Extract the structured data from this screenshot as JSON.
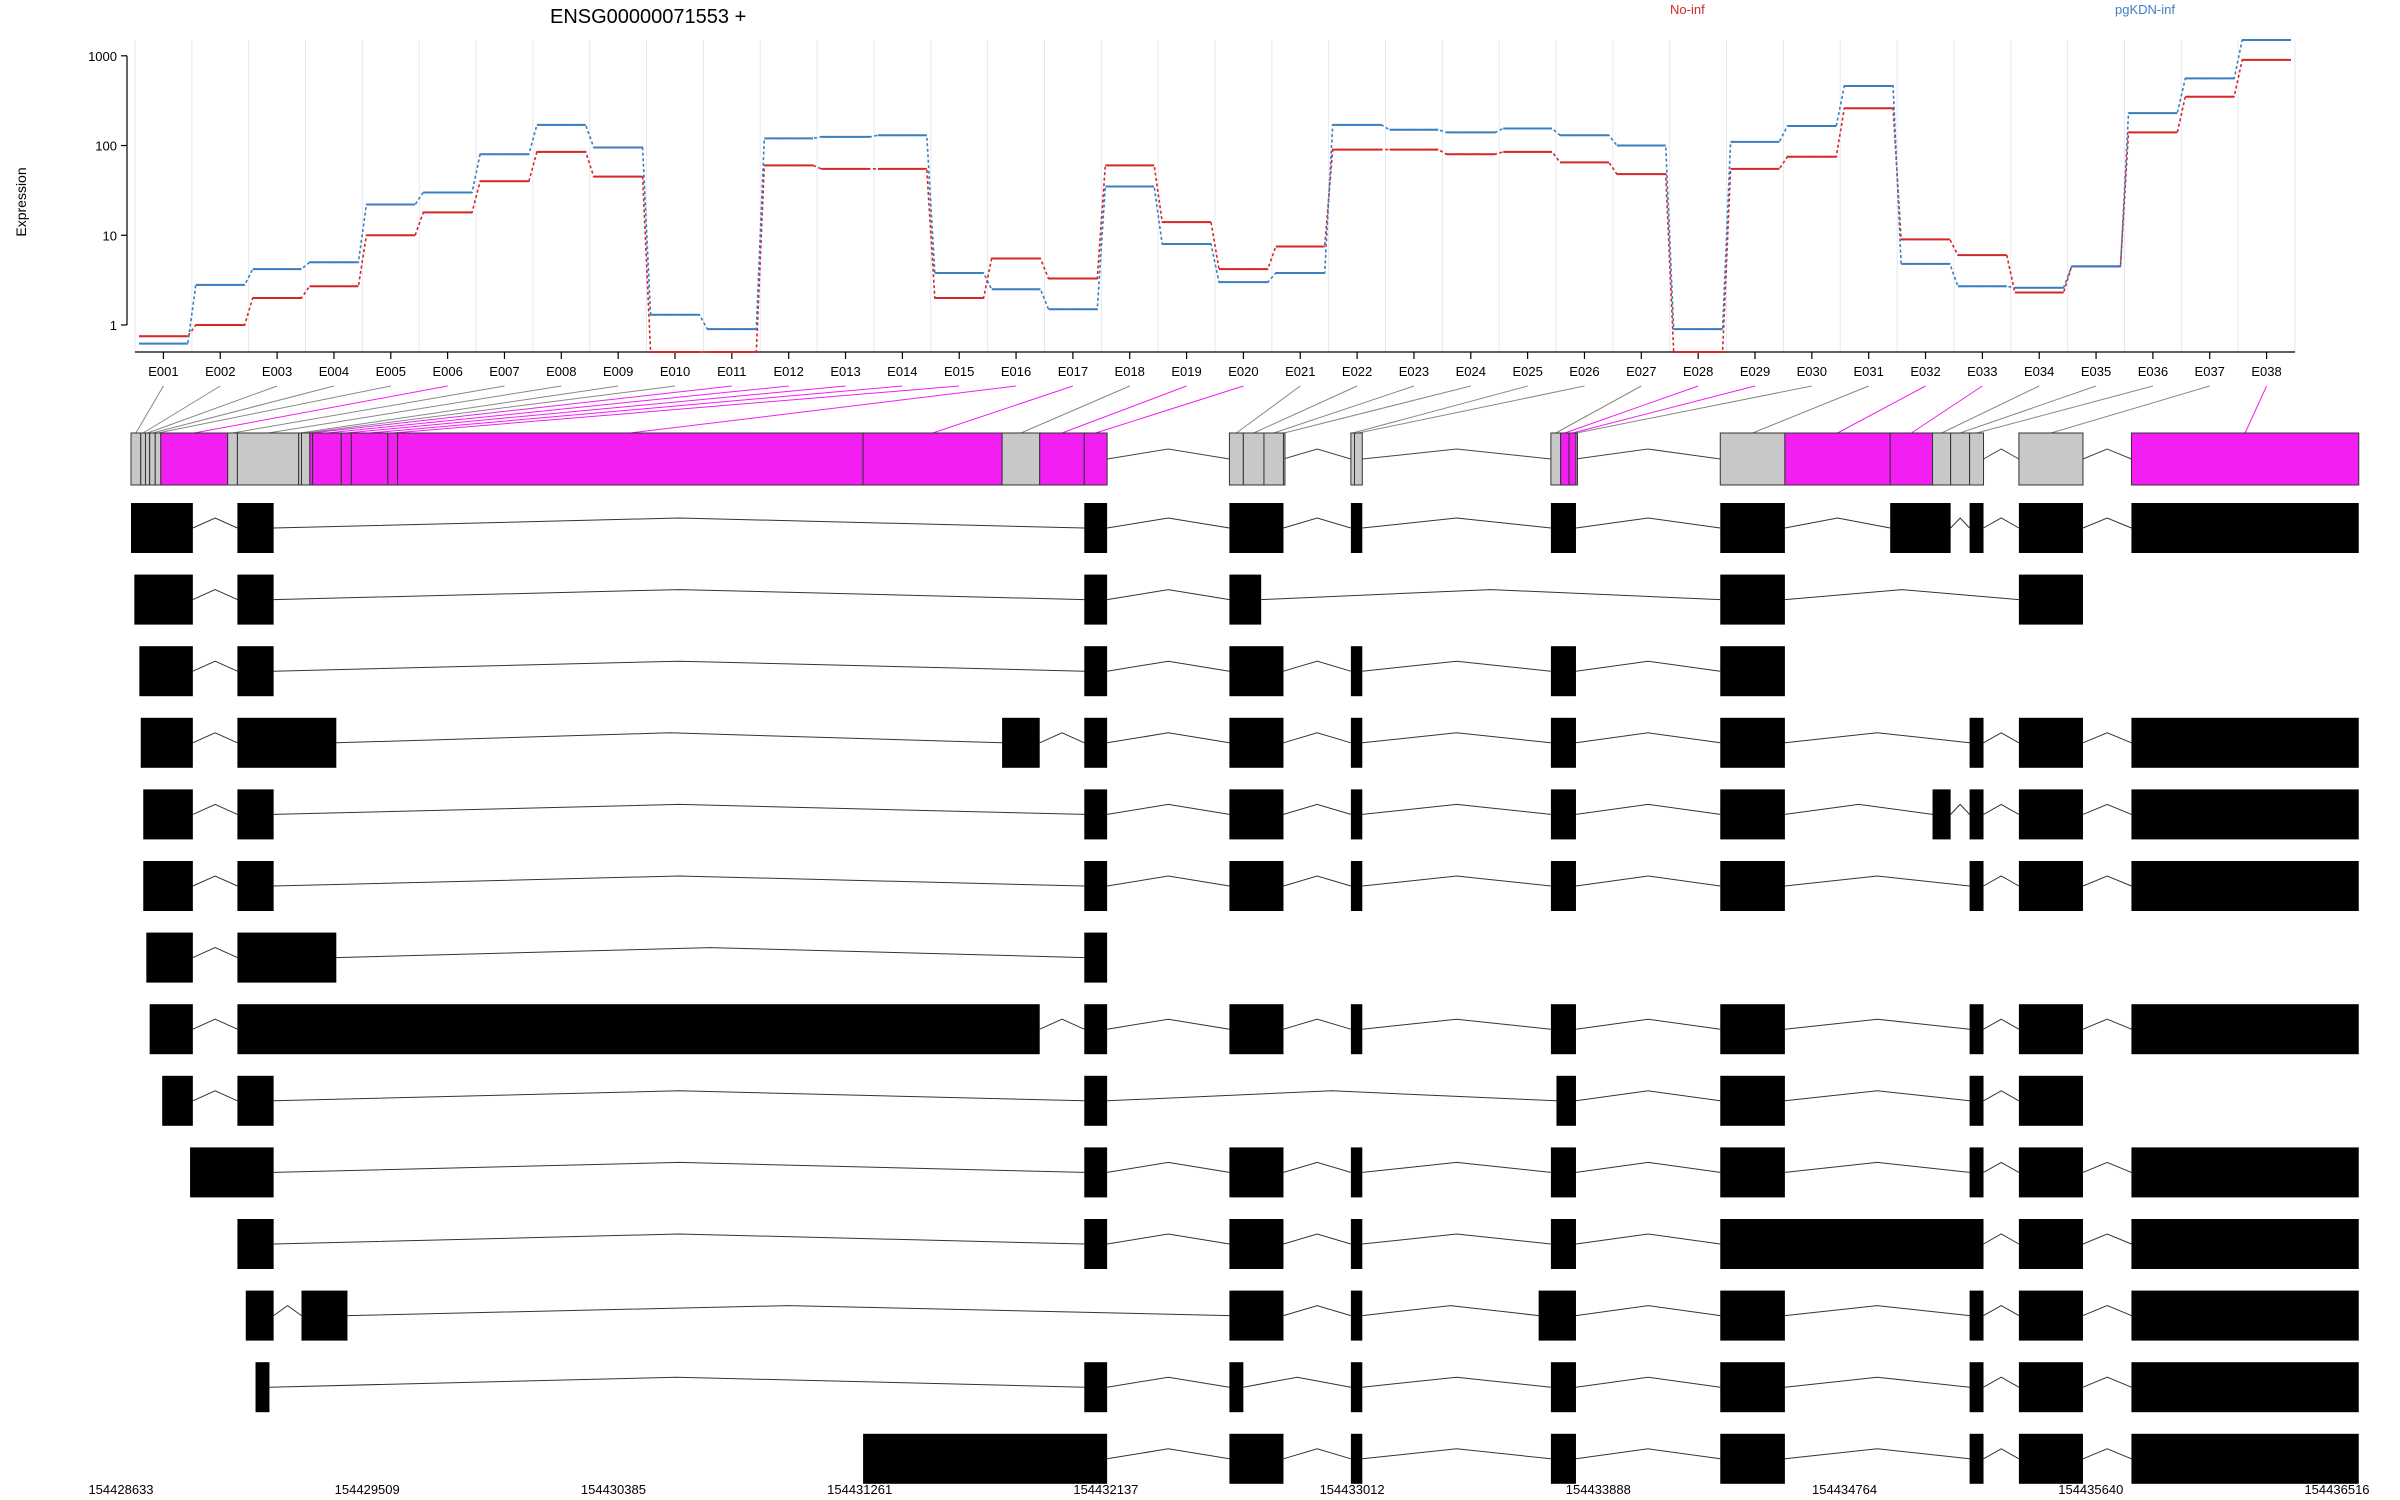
{
  "chart_data": {
    "type": "line",
    "title": "ENSG00000071553 +",
    "ylabel": "Expression",
    "yscale": "log",
    "yticks": [
      1,
      10,
      100,
      1000
    ],
    "yticklabels": [
      "1",
      "10",
      "100",
      "1000"
    ],
    "ylim": [
      0.5,
      1500
    ],
    "grid": "vertical",
    "legend": "top-right",
    "series_colors": [
      "#d62728",
      "#3a7fc0"
    ],
    "categories": [
      "E001",
      "E002",
      "E003",
      "E004",
      "E005",
      "E006",
      "E007",
      "E008",
      "E009",
      "E010",
      "E011",
      "E012",
      "E013",
      "E014",
      "E015",
      "E016",
      "E017",
      "E018",
      "E019",
      "E020",
      "E021",
      "E022",
      "E023",
      "E024",
      "E025",
      "E026",
      "E027",
      "E028",
      "E029",
      "E030",
      "E031",
      "E032",
      "E033",
      "E034",
      "E035",
      "E036",
      "E037",
      "E038"
    ],
    "series": [
      {
        "name": "No-inf",
        "color": "#d62728",
        "values": [
          0.75,
          1.0,
          2.0,
          2.7,
          10,
          18,
          40,
          85,
          45,
          0.5,
          0.5,
          60,
          55,
          55,
          2.0,
          5.5,
          3.3,
          60,
          14,
          4.2,
          7.5,
          90,
          90,
          80,
          85,
          65,
          48,
          0.5,
          55,
          75,
          260,
          9,
          6,
          2.3,
          4.5,
          140,
          350,
          900
        ]
      },
      {
        "name": "pgKDN-inf",
        "color": "#3a7fc0",
        "values": [
          0.62,
          2.8,
          4.2,
          5.0,
          22,
          30,
          80,
          170,
          95,
          1.3,
          0.9,
          120,
          125,
          130,
          3.8,
          2.5,
          1.5,
          35,
          8,
          3,
          3.8,
          170,
          150,
          140,
          155,
          130,
          100,
          0.9,
          110,
          165,
          460,
          4.8,
          2.7,
          2.6,
          4.5,
          230,
          560,
          1500
        ]
      }
    ],
    "gene_model": {
      "exon_bins": [
        [
          154428633,
          154428668
        ],
        [
          154428668,
          154428685
        ],
        [
          154428685,
          154428700
        ],
        [
          154428700,
          154428720
        ],
        [
          154428720,
          154428740
        ],
        [
          154428740,
          154428980
        ],
        [
          154428980,
          154429015
        ],
        [
          154429015,
          154429235
        ],
        [
          154429235,
          154429245
        ],
        [
          154429245,
          154429275
        ],
        [
          154429275,
          154429285
        ],
        [
          154429285,
          154429388
        ],
        [
          154429388,
          154429424
        ],
        [
          154429424,
          154429555
        ],
        [
          154429555,
          154429590
        ],
        [
          154429590,
          154431261
        ],
        [
          154431261,
          154431760
        ],
        [
          154431760,
          154431895
        ],
        [
          154431895,
          154432055
        ],
        [
          154432055,
          154432137
        ],
        [
          154432576,
          154432626
        ],
        [
          154432626,
          154432700
        ],
        [
          154432700,
          154432770
        ],
        [
          154432770,
          154432770
        ],
        [
          154433012,
          154433025
        ],
        [
          154433025,
          154433053
        ],
        [
          154433730,
          154433765
        ],
        [
          154433765,
          154433795
        ],
        [
          154433795,
          154433820
        ],
        [
          154433820,
          154433818
        ],
        [
          154434338,
          154434570
        ],
        [
          154434570,
          154434948
        ],
        [
          154434948,
          154435100
        ],
        [
          154435100,
          154435165
        ],
        [
          154435165,
          154435233
        ],
        [
          154435233,
          154435283
        ],
        [
          154435410,
          154435640
        ],
        [
          154435814,
          154436630
        ]
      ],
      "exon_bin_highlight": [
        false,
        false,
        false,
        false,
        false,
        true,
        false,
        false,
        false,
        false,
        true,
        true,
        true,
        true,
        true,
        true,
        true,
        false,
        true,
        true,
        false,
        false,
        false,
        false,
        false,
        false,
        false,
        true,
        true,
        false,
        false,
        true,
        true,
        false,
        false,
        false,
        false,
        true
      ],
      "highlight_color": "#f21ef2",
      "base_color": "#c8c8c8",
      "transcripts": [
        [
          [
            154428633,
            154428855
          ],
          [
            154429015,
            154429145
          ],
          [
            154432055,
            154432137
          ],
          [
            154432576,
            154432770
          ],
          [
            154433012,
            154433053
          ],
          [
            154433730,
            154433820
          ],
          [
            154434338,
            154434570
          ],
          [
            154434948,
            154435165
          ],
          [
            154435233,
            154435283
          ],
          [
            154435410,
            154435640
          ],
          [
            154435814,
            154436630
          ]
        ],
        [
          [
            154428645,
            154428855
          ],
          [
            154429015,
            154429145
          ],
          [
            154432055,
            154432137
          ],
          [
            154432576,
            154432690
          ],
          [
            154434338,
            154434570
          ],
          [
            154435410,
            154435640
          ]
        ],
        [
          [
            154428663,
            154428855
          ],
          [
            154429015,
            154429145
          ],
          [
            154432055,
            154432137
          ],
          [
            154432576,
            154432770
          ],
          [
            154433012,
            154433053
          ],
          [
            154433730,
            154433820
          ],
          [
            154434338,
            154434570
          ]
        ],
        [
          [
            154428668,
            154428855
          ],
          [
            154429015,
            154429370
          ],
          [
            154431760,
            154431895
          ],
          [
            154432055,
            154432137
          ],
          [
            154432576,
            154432770
          ],
          [
            154433012,
            154433053
          ],
          [
            154433730,
            154433820
          ],
          [
            154434338,
            154434570
          ],
          [
            154435233,
            154435283
          ],
          [
            154435410,
            154435640
          ],
          [
            154435814,
            154436630
          ]
        ],
        [
          [
            154428677,
            154428855
          ],
          [
            154429015,
            154429145
          ],
          [
            154432055,
            154432137
          ],
          [
            154432576,
            154432770
          ],
          [
            154433012,
            154433053
          ],
          [
            154433730,
            154433820
          ],
          [
            154434338,
            154434570
          ],
          [
            154435100,
            154435165
          ],
          [
            154435233,
            154435283
          ],
          [
            154435410,
            154435640
          ],
          [
            154435814,
            154436630
          ]
        ],
        [
          [
            154428677,
            154428855
          ],
          [
            154429015,
            154429145
          ],
          [
            154432055,
            154432137
          ],
          [
            154432576,
            154432770
          ],
          [
            154433012,
            154433053
          ],
          [
            154433730,
            154433820
          ],
          [
            154434338,
            154434570
          ],
          [
            154435233,
            154435283
          ],
          [
            154435410,
            154435640
          ],
          [
            154435814,
            154436630
          ]
        ],
        [
          [
            154428688,
            154428855
          ],
          [
            154429015,
            154429370
          ],
          [
            154432055,
            154432137
          ]
        ],
        [
          [
            154428700,
            154428855
          ],
          [
            154429015,
            154431895
          ],
          [
            154432055,
            154432137
          ],
          [
            154432576,
            154432770
          ],
          [
            154433012,
            154433053
          ],
          [
            154433730,
            154433820
          ],
          [
            154434338,
            154434570
          ],
          [
            154435233,
            154435283
          ],
          [
            154435410,
            154435640
          ],
          [
            154435814,
            154436630
          ]
        ],
        [
          [
            154428745,
            154428855
          ],
          [
            154429015,
            154429145
          ],
          [
            154432055,
            154432137
          ],
          [
            154433750,
            154433820
          ],
          [
            154434338,
            154434570
          ],
          [
            154435233,
            154435283
          ],
          [
            154435410,
            154435640
          ]
        ],
        [
          [
            154428845,
            154429145
          ],
          [
            154432055,
            154432137
          ],
          [
            154432576,
            154432770
          ],
          [
            154433012,
            154433053
          ],
          [
            154433730,
            154433820
          ],
          [
            154434338,
            154434570
          ],
          [
            154435233,
            154435283
          ],
          [
            154435410,
            154435640
          ],
          [
            154435814,
            154436630
          ]
        ],
        [
          [
            154429015,
            154429145
          ],
          [
            154432055,
            154432137
          ],
          [
            154432576,
            154432770
          ],
          [
            154433012,
            154433053
          ],
          [
            154433730,
            154433820
          ],
          [
            154434338,
            154435283
          ],
          [
            154435410,
            154435640
          ],
          [
            154435814,
            154436630
          ]
        ],
        [
          [
            154429045,
            154429145
          ],
          [
            154429245,
            154429410
          ],
          [
            154432576,
            154432770
          ],
          [
            154433012,
            154433053
          ],
          [
            154433686,
            154433820
          ],
          [
            154434338,
            154434570
          ],
          [
            154435233,
            154435283
          ],
          [
            154435410,
            154435640
          ],
          [
            154435814,
            154436630
          ]
        ],
        [
          [
            154429080,
            154429130
          ],
          [
            154432055,
            154432137
          ],
          [
            154432576,
            154432626
          ],
          [
            154433012,
            154433053
          ],
          [
            154433730,
            154433820
          ],
          [
            154434338,
            154434570
          ],
          [
            154435233,
            154435283
          ],
          [
            154435410,
            154435640
          ],
          [
            154435814,
            154436630
          ]
        ],
        [
          [
            154431261,
            154432137
          ],
          [
            154432576,
            154432770
          ],
          [
            154433012,
            154433053
          ],
          [
            154433730,
            154433820
          ],
          [
            154434338,
            154434570
          ],
          [
            154435233,
            154435283
          ],
          [
            154435410,
            154435640
          ],
          [
            154435814,
            154436630
          ]
        ]
      ],
      "coord_ticks": [
        "154428633",
        "154429509",
        "154430385",
        "154431261",
        "154432137",
        "154433012",
        "154433888",
        "154434764",
        "154435640",
        "154436516"
      ]
    }
  }
}
